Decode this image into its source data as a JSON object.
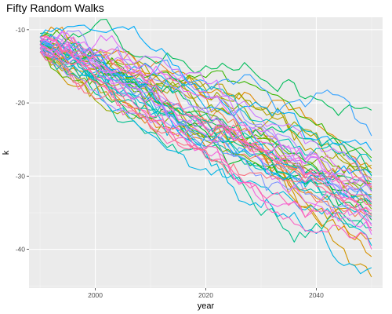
{
  "chart_data": {
    "type": "line",
    "title": "Fifty Random Walks",
    "xlabel": "year",
    "ylabel": "k",
    "x_range": [
      1990,
      2050
    ],
    "xlim": [
      1988,
      2052
    ],
    "ylim": [
      -45.3,
      -8.3
    ],
    "x_ticks": [
      2000,
      2020,
      2040
    ],
    "y_ticks": [
      -10,
      -20,
      -30,
      -40
    ],
    "grid": true,
    "legend": "none",
    "background": "#EBEBEB",
    "series": [
      {
        "color": "#F8766D",
        "start": -12.0,
        "end": -31.5
      },
      {
        "color": "#F37B59",
        "start": -12.5,
        "end": -35.0
      },
      {
        "color": "#ED8141",
        "start": -11.5,
        "end": -33.0
      },
      {
        "color": "#E7861B",
        "start": -13.0,
        "end": -38.5
      },
      {
        "color": "#DF8A00",
        "start": -11.0,
        "end": -29.0
      },
      {
        "color": "#D79000",
        "start": -12.0,
        "end": -41.0
      },
      {
        "color": "#CF9400",
        "start": -12.5,
        "end": -43.8
      },
      {
        "color": "#C59900",
        "start": -11.5,
        "end": -34.0
      },
      {
        "color": "#BB9D00",
        "start": -13.0,
        "end": -31.0
      },
      {
        "color": "#B0A100",
        "start": -12.0,
        "end": -28.5
      },
      {
        "color": "#A3A500",
        "start": -11.0,
        "end": -30.5
      },
      {
        "color": "#96A900",
        "start": -12.5,
        "end": -32.5
      },
      {
        "color": "#85AD00",
        "start": -12.0,
        "end": -34.5
      },
      {
        "color": "#72B000",
        "start": -11.5,
        "end": -29.5
      },
      {
        "color": "#5BB300",
        "start": -13.0,
        "end": -31.8
      },
      {
        "color": "#39B600",
        "start": -11.0,
        "end": -27.5
      },
      {
        "color": "#00B81F",
        "start": -12.0,
        "end": -33.5
      },
      {
        "color": "#00BA42",
        "start": -11.5,
        "end": -36.0
      },
      {
        "color": "#00BC59",
        "start": -10.5,
        "end": -21.0
      },
      {
        "color": "#00BE6C",
        "start": -11.0,
        "end": -30.0
      },
      {
        "color": "#00BF7D",
        "start": -12.5,
        "end": -32.0
      },
      {
        "color": "#00C08D",
        "start": -11.5,
        "end": -35.5
      },
      {
        "color": "#00C19C",
        "start": -12.0,
        "end": -37.0
      },
      {
        "color": "#00C0AA",
        "start": -13.0,
        "end": -33.8
      },
      {
        "color": "#00BFB8",
        "start": -11.0,
        "end": -30.8
      },
      {
        "color": "#00BDC4",
        "start": -12.0,
        "end": -28.0
      },
      {
        "color": "#00BBD0",
        "start": -12.5,
        "end": -35.2
      },
      {
        "color": "#00B8DB",
        "start": -11.5,
        "end": -39.5
      },
      {
        "color": "#00B4E5",
        "start": -12.0,
        "end": -42.5
      },
      {
        "color": "#00B0EF",
        "start": -13.0,
        "end": -32.8
      },
      {
        "color": "#00ABFA",
        "start": -11.0,
        "end": -26.5
      },
      {
        "color": "#00A6FF",
        "start": -12.0,
        "end": -29.8
      },
      {
        "color": "#35A2FF",
        "start": -11.5,
        "end": -24.5
      },
      {
        "color": "#619CFF",
        "start": -12.5,
        "end": -33.2
      },
      {
        "color": "#7F96FF",
        "start": -12.0,
        "end": -36.5
      },
      {
        "color": "#978FFF",
        "start": -11.0,
        "end": -31.2
      },
      {
        "color": "#AC88FF",
        "start": -12.5,
        "end": -34.2
      },
      {
        "color": "#BC81FF",
        "start": -13.0,
        "end": -30.2
      },
      {
        "color": "#CA7AFF",
        "start": -11.5,
        "end": -32.2
      },
      {
        "color": "#D774FD",
        "start": -12.0,
        "end": -35.8
      },
      {
        "color": "#E06FF6",
        "start": -12.5,
        "end": -38.0
      },
      {
        "color": "#E76BF3",
        "start": -11.0,
        "end": -31.0
      },
      {
        "color": "#EE67E9",
        "start": -12.0,
        "end": -34.8
      },
      {
        "color": "#F365DD",
        "start": -13.0,
        "end": -36.8
      },
      {
        "color": "#F763D0",
        "start": -11.5,
        "end": -33.6
      },
      {
        "color": "#FA62C2",
        "start": -12.0,
        "end": -40.0
      },
      {
        "color": "#FC63B3",
        "start": -12.5,
        "end": -37.5
      },
      {
        "color": "#FD66A3",
        "start": -11.0,
        "end": -31.6
      },
      {
        "color": "#FC6A92",
        "start": -12.0,
        "end": -34.0
      },
      {
        "color": "#FA7080",
        "start": -13.0,
        "end": -35.4
      }
    ]
  }
}
